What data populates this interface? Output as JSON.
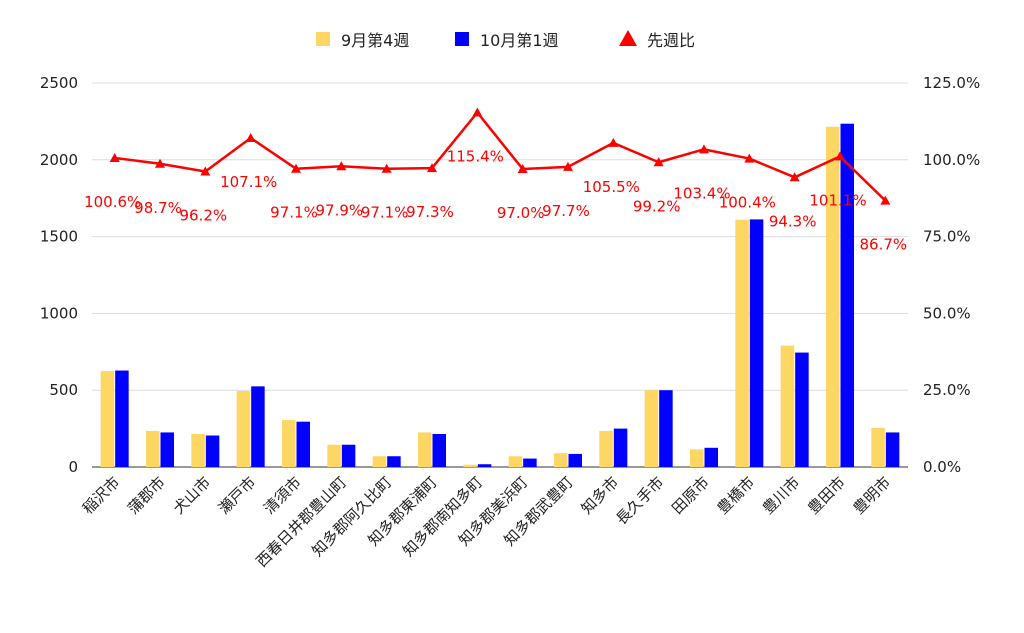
{
  "chart_data": {
    "type": "bar",
    "categories": [
      "稲沢市",
      "蒲郡市",
      "犬山市",
      "瀬戸市",
      "清須市",
      "西春日井郡豊山町",
      "知多郡阿久比町",
      "知多郡東浦町",
      "知多郡南知多町",
      "知多郡美浜町",
      "知多郡武豊町",
      "知多市",
      "長久手市",
      "田原市",
      "豊橋市",
      "豊川市",
      "豊田市",
      "豊明市"
    ],
    "series": [
      {
        "name": "9月第4週",
        "type": "bar",
        "axis": "left",
        "color": "#fdd663",
        "values": [
          625,
          235,
          215,
          495,
          305,
          145,
          70,
          225,
          15,
          70,
          90,
          235,
          500,
          115,
          1610,
          790,
          2215,
          255
        ]
      },
      {
        "name": "10月第1週",
        "type": "bar",
        "axis": "left",
        "color": "#0000ff",
        "values": [
          628,
          225,
          205,
          525,
          295,
          145,
          70,
          215,
          18,
          55,
          85,
          250,
          500,
          125,
          1612,
          745,
          2235,
          225
        ]
      },
      {
        "name": "先週比",
        "type": "line",
        "axis": "right",
        "color": "#ff0000",
        "values": [
          100.6,
          98.7,
          96.2,
          107.1,
          97.1,
          97.9,
          97.1,
          97.3,
          115.4,
          97.0,
          97.7,
          105.5,
          99.2,
          103.4,
          100.4,
          94.3,
          101.1,
          86.7
        ],
        "labels": [
          "100.6%",
          "98.7%",
          "96.2%",
          "107.1%",
          "97.1%",
          "97.9%",
          "97.1%",
          "97.3%",
          "115.4%",
          "97.0%",
          "97.7%",
          "105.5%",
          "99.2%",
          "103.4%",
          "100.4%",
          "94.3%",
          "101.1%",
          "86.7%"
        ]
      }
    ],
    "y_left": {
      "min": 0,
      "max": 2500,
      "ticks": [
        "0",
        "500",
        "1000",
        "1500",
        "2000",
        "2500"
      ]
    },
    "y_right": {
      "min": 0,
      "max": 125,
      "ticks": [
        "0.0%",
        "25.0%",
        "50.0%",
        "75.0%",
        "100.0%",
        "125.0%"
      ]
    },
    "legend_position": "top",
    "grid": true
  }
}
